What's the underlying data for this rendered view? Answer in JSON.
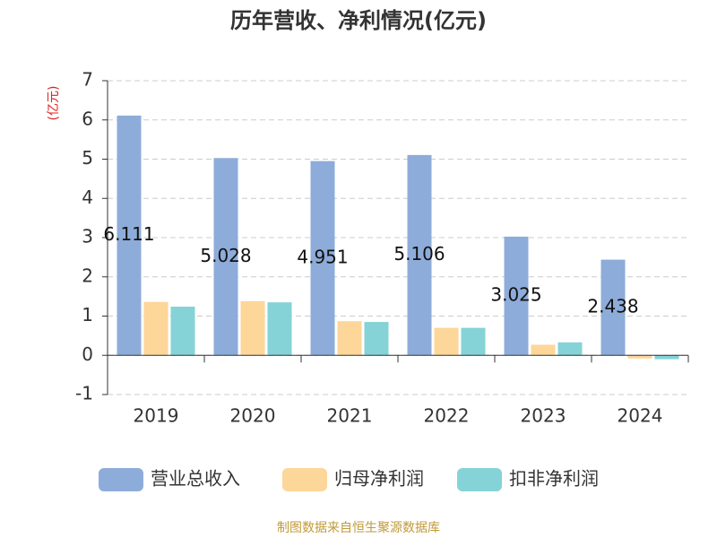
{
  "chart_data": {
    "type": "bar",
    "title": "历年营收、净利情况(亿元)",
    "y_label": "(亿元)",
    "categories": [
      "2019",
      "2020",
      "2021",
      "2022",
      "2023",
      "2024"
    ],
    "series": [
      {
        "name": "营业总收入",
        "color": "#8eacd9",
        "values": [
          6.111,
          5.028,
          4.951,
          5.106,
          3.025,
          2.438
        ]
      },
      {
        "name": "归母净利润",
        "color": "#fdd699",
        "values": [
          1.36,
          1.38,
          0.87,
          0.7,
          0.27,
          -0.08
        ]
      },
      {
        "name": "扣非净利润",
        "color": "#85d3d6",
        "values": [
          1.24,
          1.35,
          0.85,
          0.7,
          0.33,
          -0.1
        ]
      }
    ],
    "ylim": [
      -1,
      7
    ],
    "yticks": [
      -1,
      0,
      1,
      2,
      3,
      4,
      5,
      6,
      7
    ],
    "grid": true,
    "source": "制图数据来自恒生聚源数据库"
  }
}
